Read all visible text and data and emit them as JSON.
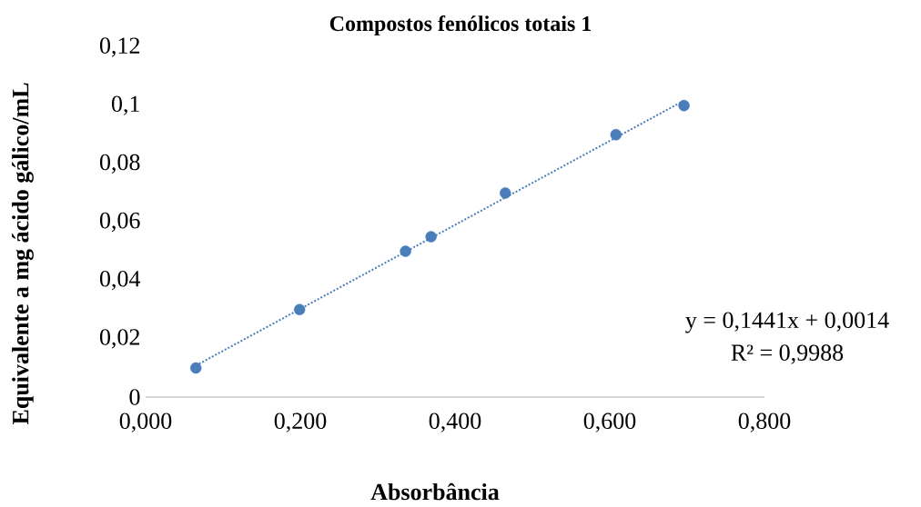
{
  "chart_data": {
    "type": "scatter",
    "title": "Compostos fenólicos totais 1",
    "xlabel": "Absorbância",
    "ylabel": "Equivalente a mg ácido gálico/mL",
    "series": [
      {
        "color": "#4a7ebb",
        "marker": "circle",
        "x": [
          0.065,
          0.199,
          0.336,
          0.369,
          0.465,
          0.608,
          0.696
        ],
        "values": [
          0.01,
          0.03,
          0.05,
          0.055,
          0.07,
          0.09,
          0.1
        ]
      },
      {
        "type": "line",
        "color": "#4a7ebb",
        "line_style": "dotted",
        "marker": "none",
        "x": [
          0.065,
          0.696
        ],
        "values": [
          0.0108,
          0.1017
        ]
      }
    ],
    "annotations": [
      "y = 0,1441x + 0,0014",
      "R² = 0,9988"
    ],
    "xlim": [
      0,
      0.8
    ],
    "ylim": [
      0,
      0.12
    ],
    "xticks": [
      {
        "value": 0,
        "label": "0,000"
      },
      {
        "value": 0.2,
        "label": "0,200"
      },
      {
        "value": 0.4,
        "label": "0,400"
      },
      {
        "value": 0.6,
        "label": "0,600"
      },
      {
        "value": 0.8,
        "label": "0,800"
      }
    ],
    "yticks": [
      0,
      {
        "value": 0.02,
        "label": "0,02"
      },
      {
        "value": 0.04,
        "label": "0,04"
      },
      {
        "value": 0.06,
        "label": "0,06"
      },
      {
        "value": 0.08,
        "label": "0,08"
      },
      {
        "value": 0.1,
        "label": "0,1"
      },
      {
        "value": 0.12,
        "label": "0,12"
      }
    ],
    "grid": false
  }
}
